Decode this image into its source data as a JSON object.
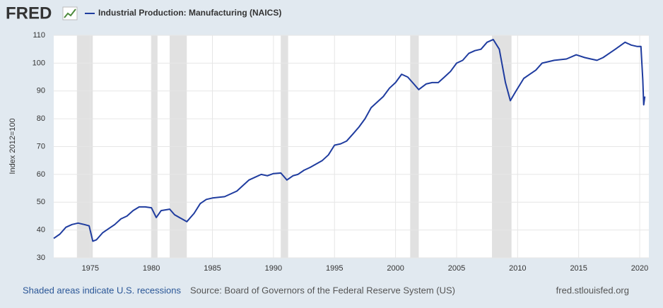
{
  "logo": "FRED",
  "chart_data": {
    "type": "line",
    "title": "Industrial Production: Manufacturing (NAICS)",
    "y_label": "Index 2012=100",
    "footer_left": "Shaded areas indicate U.S. recessions",
    "footer_source": "Source: Board of Governors of the Federal Reserve System (US)",
    "footer_right": "fred.stlouisfed.org",
    "xlim": [
      1972,
      2020.75
    ],
    "xticks": [
      1975,
      1980,
      1985,
      1990,
      1995,
      2000,
      2005,
      2010,
      2015,
      2020
    ],
    "ylim": [
      30,
      110
    ],
    "yticks": [
      30,
      40,
      50,
      60,
      70,
      80,
      90,
      100,
      110
    ],
    "grid": true,
    "recession_color": "#e1e1e1",
    "recessions": [
      [
        1973.9,
        1975.2
      ],
      [
        1980.0,
        1980.5
      ],
      [
        1981.5,
        1982.9
      ],
      [
        1990.6,
        1991.2
      ],
      [
        2001.2,
        2001.9
      ],
      [
        2007.9,
        2009.5
      ]
    ],
    "x": [
      1972.0,
      1972.5,
      1973.0,
      1973.5,
      1974.0,
      1974.5,
      1974.9,
      1975.2,
      1975.5,
      1976.0,
      1976.5,
      1977.0,
      1977.5,
      1978.0,
      1978.5,
      1979.0,
      1979.5,
      1980.0,
      1980.4,
      1980.8,
      1981.5,
      1981.9,
      1982.5,
      1982.9,
      1983.5,
      1984.0,
      1984.5,
      1985.0,
      1986.0,
      1987.0,
      1987.5,
      1988.0,
      1988.5,
      1989.0,
      1989.5,
      1990.0,
      1990.6,
      1991.1,
      1991.6,
      1992.0,
      1992.5,
      1993.0,
      1994.0,
      1994.5,
      1995.0,
      1995.5,
      1996.0,
      1996.5,
      1997.0,
      1997.5,
      1998.0,
      1998.5,
      1999.0,
      1999.5,
      2000.0,
      2000.5,
      2001.0,
      2001.5,
      2001.9,
      2002.5,
      2003.0,
      2003.5,
      2004.0,
      2004.5,
      2005.0,
      2005.5,
      2006.0,
      2006.5,
      2007.0,
      2007.5,
      2008.0,
      2008.5,
      2009.0,
      2009.4,
      2009.8,
      2010.5,
      2011.0,
      2011.5,
      2012.0,
      2013.0,
      2014.0,
      2014.8,
      2015.5,
      2016.0,
      2016.5,
      2017.0,
      2017.5,
      2018.0,
      2018.8,
      2019.3,
      2019.8,
      2020.1,
      2020.25,
      2020.33,
      2020.42
    ],
    "series": [
      {
        "name": "Industrial Production: Manufacturing (NAICS)",
        "color": "#1f3c9f",
        "values": [
          37,
          38.5,
          41,
          42,
          42.5,
          42,
          41.5,
          36,
          36.5,
          39,
          40.5,
          42,
          44,
          45,
          47,
          48.3,
          48.3,
          48,
          44.5,
          47,
          47.5,
          45.5,
          44,
          43,
          46,
          49.5,
          51,
          51.5,
          52,
          54,
          56,
          58,
          59,
          60,
          59.5,
          60.3,
          60.5,
          58,
          59.5,
          60,
          61.5,
          62.5,
          65,
          67,
          70.5,
          71,
          72,
          74.5,
          77,
          80,
          84,
          86,
          88,
          91,
          93,
          96,
          95,
          92.5,
          90.5,
          92.5,
          93,
          93,
          95,
          97,
          100,
          101,
          103.5,
          104.5,
          105,
          107.5,
          108.5,
          105,
          93,
          86.5,
          89.5,
          94.5,
          96,
          97.5,
          100,
          101,
          101.5,
          103,
          102,
          101.5,
          101,
          102,
          103.5,
          105,
          107.5,
          106.5,
          106,
          106,
          94,
          85,
          88
        ]
      }
    ]
  }
}
